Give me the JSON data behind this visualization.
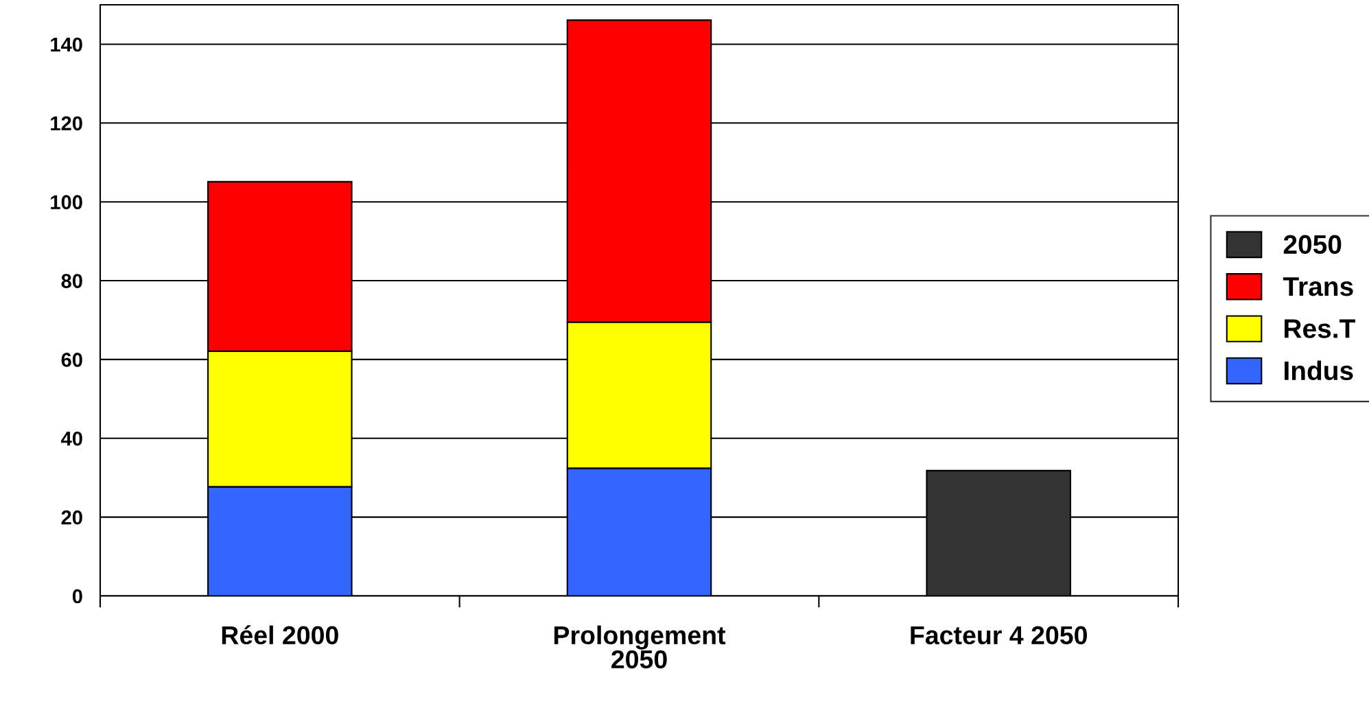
{
  "chart_data": {
    "type": "bar",
    "stacked": true,
    "categories": [
      "Réel 2000",
      "Prolongement\n2050",
      "Facteur 4 2050"
    ],
    "series": [
      {
        "name": "Indus",
        "color": "#3366ff",
        "values": [
          27.7,
          32.4,
          null
        ]
      },
      {
        "name": "Res.T",
        "color": "#ffff00",
        "values": [
          34.4,
          37.1,
          null
        ]
      },
      {
        "name": "Trans",
        "color": "#ff0000",
        "values": [
          43.0,
          76.6,
          null
        ]
      },
      {
        "name": "2050",
        "color": "#333333",
        "values": [
          null,
          null,
          31.8
        ]
      }
    ],
    "ylim": [
      0,
      150
    ],
    "yticks": [
      0,
      20,
      40,
      60,
      80,
      100,
      120,
      140
    ],
    "grid": "y",
    "legend": "right"
  }
}
